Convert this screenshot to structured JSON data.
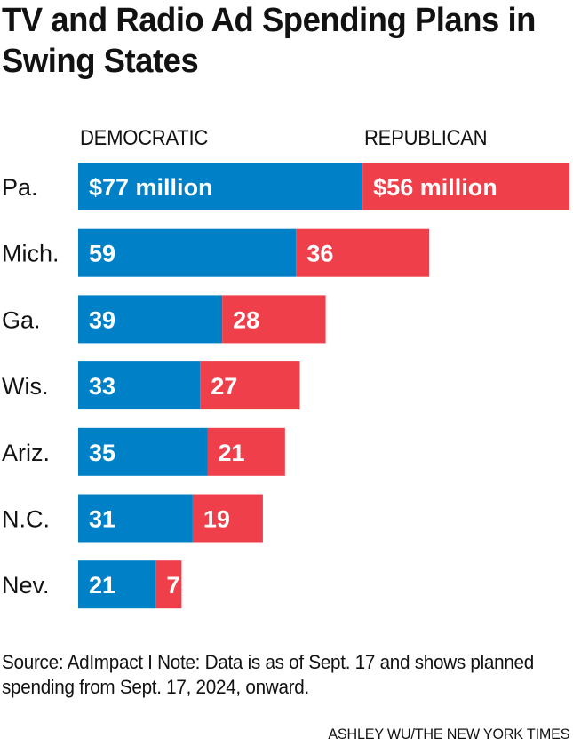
{
  "title": "TV and Radio Ad Spending Plans in Swing States",
  "note": "Source: AdImpact I Note: Data is as of Sept. 17 and shows planned spending from Sept. 17, 2024, onward.",
  "credit": "ASHLEY WU/THE NEW YORK TIMES",
  "colors": {
    "democratic": "#0080c6",
    "republican": "#ef3f4a"
  },
  "chart_data": {
    "type": "bar",
    "orientation": "horizontal",
    "stacked": true,
    "title": "TV and Radio Ad Spending Plans in Swing States",
    "xlabel": "",
    "ylabel": "",
    "units": "million dollars",
    "categories": [
      "Pa.",
      "Mich.",
      "Ga.",
      "Wis.",
      "Ariz.",
      "N.C.",
      "Nev."
    ],
    "series": [
      {
        "name": "DEMOCRATIC",
        "color": "#0080c6",
        "values": [
          77,
          59,
          39,
          33,
          35,
          31,
          21
        ],
        "labels": [
          "$77 million",
          "59",
          "39",
          "33",
          "35",
          "31",
          "21"
        ]
      },
      {
        "name": "REPUBLICAN",
        "color": "#ef3f4a",
        "values": [
          56,
          36,
          28,
          27,
          21,
          19,
          7
        ],
        "labels": [
          "$56 million",
          "36",
          "28",
          "27",
          "21",
          "19",
          "7"
        ]
      }
    ],
    "xlim": [
      0,
      133
    ],
    "grid": false,
    "legend": "top"
  }
}
